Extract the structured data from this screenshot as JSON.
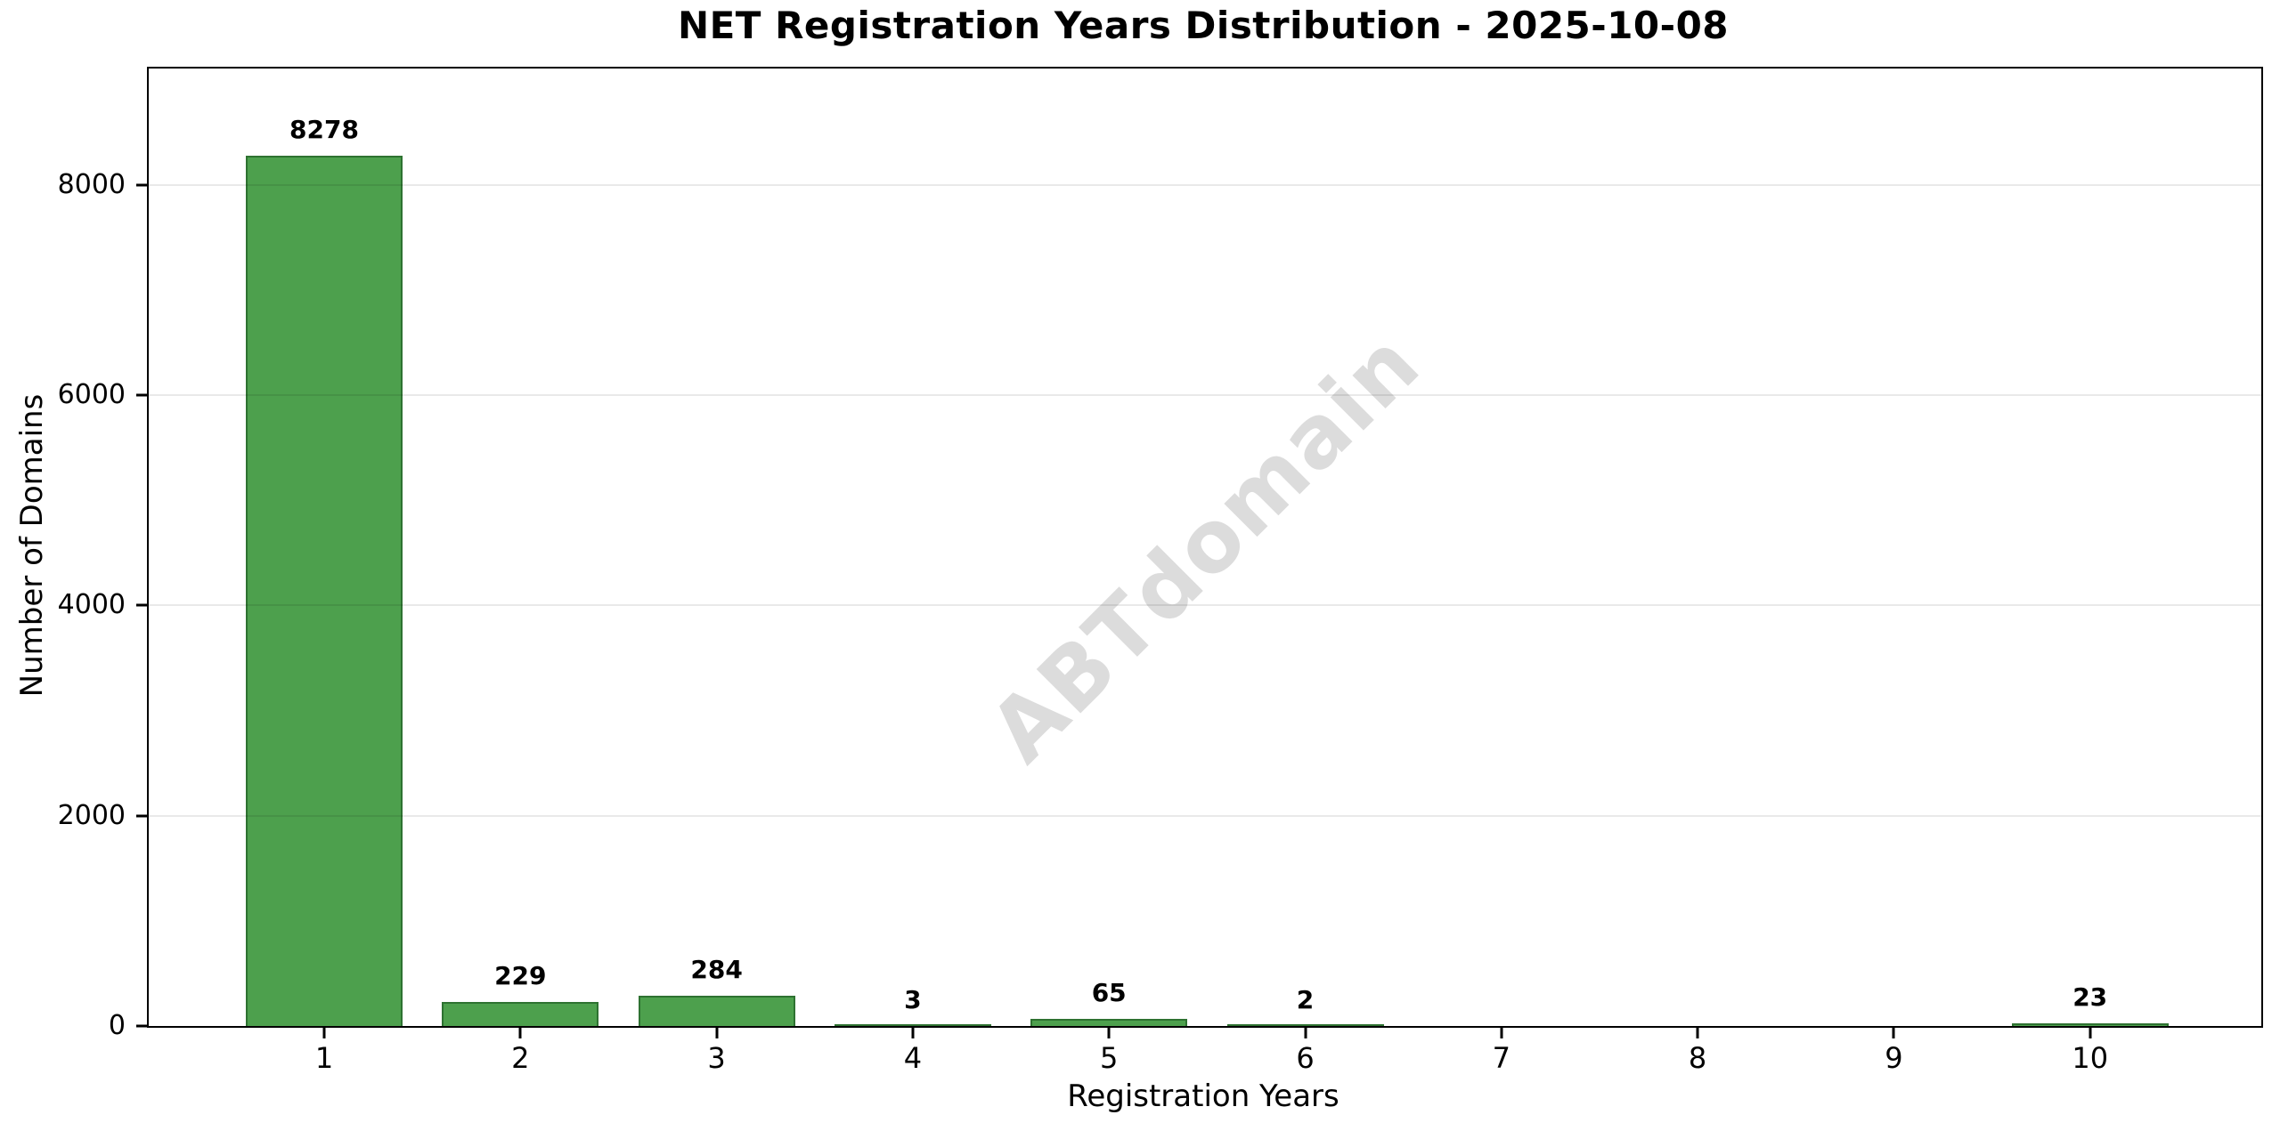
{
  "title": "NET Registration Years Distribution - 2025-10-08",
  "watermark": "ABTdomain",
  "chart_data": {
    "type": "bar",
    "title": "NET Registration Years Distribution - 2025-10-08",
    "xlabel": "Registration Years",
    "ylabel": "Number of Domains",
    "categories": [
      "1",
      "2",
      "3",
      "4",
      "5",
      "6",
      "7",
      "8",
      "9",
      "10"
    ],
    "values": [
      8278,
      229,
      284,
      3,
      65,
      2,
      0,
      0,
      0,
      23
    ],
    "bar_labels": [
      "8278",
      "229",
      "284",
      "3",
      "65",
      "2",
      "",
      "",
      "",
      "23"
    ],
    "y_ticks": [
      0,
      2000,
      4000,
      6000,
      8000
    ],
    "ylim": [
      0,
      9106
    ],
    "bar_width_units": 0.8,
    "grid": "horizontal-only",
    "legend": "none",
    "watermark_text": "ABTdomain",
    "colors": {
      "bar_fill": "#4da04d",
      "bar_edge": "#2e7231",
      "gridline": "#e9e9e9",
      "watermark": "#dcdcdc",
      "text": "#000000",
      "background": "#ffffff"
    }
  }
}
